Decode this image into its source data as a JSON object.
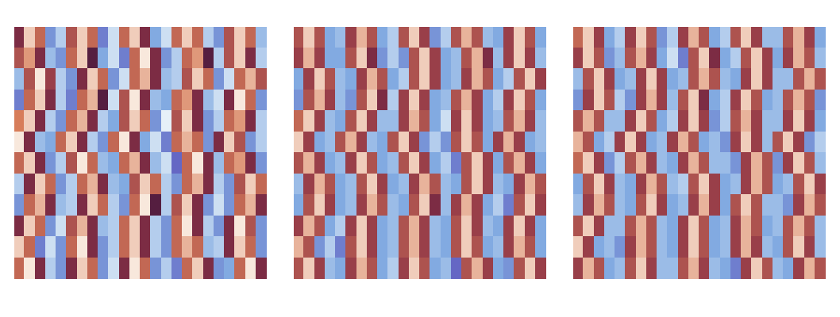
{
  "chart_data": [
    {
      "type": "heatmap",
      "tick_labels": false,
      "clim": [
        -1,
        1
      ],
      "cells": [
        [
          0.2,
          0.9,
          0.5,
          -0.5,
          -0.8,
          0.4,
          0.9,
          0.5,
          -0.4,
          -0.9,
          0.5,
          0.9,
          0.2,
          -0.6,
          -0.9,
          0.5,
          0.9,
          0.5,
          -0.8,
          -0.5,
          0.4,
          0.9,
          0.5,
          -0.7
        ],
        [
          0.4,
          0.7,
          0.2,
          -0.7,
          -0.5,
          0.5,
          0.9,
          0.1,
          -0.6,
          -0.9,
          -0.4,
          0.5,
          1.0,
          0.2,
          -0.5,
          -0.8,
          0.5,
          0.7,
          0.1,
          -0.8,
          0.4,
          0.9,
          0.2,
          -0.8
        ],
        [
          -0.7,
          0.4,
          1.0,
          0.3,
          -0.8,
          -0.5,
          0.2,
          0.9,
          0.5,
          -0.5,
          -0.9,
          0.5,
          0.8,
          0.2,
          -0.7,
          -0.8,
          0.4,
          0.9,
          0.5,
          -0.5,
          -0.9,
          0.5,
          0.8,
          0.4
        ],
        [
          -0.4,
          0.5,
          0.9,
          0.2,
          -0.8,
          -0.4,
          0.5,
          0.8,
          0.1,
          -0.9,
          0.4,
          1.0,
          0.2,
          -0.7,
          -0.6,
          0.5,
          0.7,
          0.2,
          -0.7,
          -0.9,
          0.2,
          1.0,
          0.5,
          -0.5
        ],
        [
          0.6,
          0.9,
          0.2,
          -0.8,
          -0.5,
          0.5,
          0.8,
          0.2,
          -0.8,
          -0.6,
          0.4,
          0.9,
          0.5,
          -0.5,
          -1.0,
          0.4,
          0.9,
          0.2,
          -0.5,
          -0.8,
          0.5,
          0.7,
          0.2,
          -0.8
        ],
        [
          1.0,
          0.2,
          -0.7,
          -0.6,
          0.5,
          0.9,
          0.2,
          -0.8,
          -0.5,
          0.5,
          1.0,
          0.2,
          -0.6,
          -0.9,
          -0.4,
          0.5,
          0.8,
          0.5,
          -0.5,
          0.2,
          0.9,
          0.4,
          -0.5,
          -0.8
        ],
        [
          0.5,
          0.9,
          0.2,
          -0.5,
          -0.8,
          0.4,
          1.0,
          0.5,
          -0.7,
          -0.6,
          0.5,
          0.8,
          0.2,
          -0.7,
          -0.9,
          -0.3,
          0.5,
          1.0,
          0.2,
          -0.7,
          0.5,
          0.7,
          0.2,
          -0.5
        ],
        [
          -0.8,
          0.2,
          0.9,
          0.5,
          -0.5,
          -0.8,
          0.5,
          0.8,
          0.2,
          -0.7,
          -0.6,
          0.4,
          0.9,
          0.5,
          -0.8,
          -0.5,
          0.5,
          0.8,
          0.2,
          -0.8,
          -0.5,
          0.4,
          0.9,
          0.5
        ],
        [
          -0.5,
          0.5,
          0.8,
          0.2,
          -0.7,
          -0.8,
          0.2,
          0.9,
          0.5,
          -0.8,
          -0.5,
          0.5,
          1.0,
          0.1,
          -0.8,
          0.4,
          0.9,
          0.2,
          -0.5,
          -0.9,
          -0.5,
          0.5,
          0.8,
          0.2
        ],
        [
          0.2,
          0.9,
          0.5,
          -0.5,
          -0.9,
          0.4,
          0.8,
          0.2,
          -0.7,
          -0.8,
          0.5,
          0.9,
          0.2,
          -0.8,
          -0.5,
          0.5,
          1.0,
          0.2,
          -0.8,
          -0.5,
          0.2,
          1.0,
          0.4,
          -0.5
        ],
        [
          0.9,
          0.5,
          -0.4,
          -0.9,
          -0.5,
          0.5,
          1.0,
          0.2,
          -0.5,
          -0.8,
          0.5,
          0.9,
          0.2,
          -0.8,
          -0.5,
          0.5,
          0.8,
          0.5,
          -0.7,
          -0.8,
          0.2,
          0.9,
          0.5,
          -0.5
        ],
        [
          0.5,
          1.0,
          0.2,
          -0.8,
          -0.5,
          0.2,
          0.9,
          0.5,
          -0.5,
          -0.9,
          0.2,
          1.0,
          0.5,
          -0.5,
          -0.8,
          -0.4,
          0.5,
          0.9,
          0.2,
          -0.5,
          -0.6,
          0.5,
          1.0,
          0.2
        ]
      ]
    },
    {
      "type": "heatmap",
      "tick_labels": false,
      "clim": [
        -1,
        1
      ],
      "cells": [
        [
          0.4,
          0.9,
          0.4,
          -0.6,
          -0.7,
          0.3,
          0.8,
          0.4,
          -0.6,
          -0.8,
          0.4,
          0.9,
          0.3,
          -0.5,
          -0.8,
          0.4,
          0.8,
          0.4,
          -0.7,
          -0.6,
          0.3,
          0.9,
          0.4,
          -0.6
        ],
        [
          0.3,
          0.8,
          0.3,
          -0.6,
          -0.6,
          0.4,
          0.9,
          0.2,
          -0.5,
          -0.8,
          -0.5,
          0.4,
          0.9,
          0.3,
          -0.6,
          -0.7,
          0.4,
          0.8,
          0.2,
          -0.7,
          0.3,
          0.9,
          0.3,
          -0.7
        ],
        [
          -0.6,
          0.3,
          0.9,
          0.4,
          -0.7,
          -0.6,
          0.3,
          0.8,
          0.4,
          -0.6,
          -0.8,
          0.4,
          0.9,
          0.3,
          -0.6,
          -0.7,
          0.3,
          0.8,
          0.4,
          -0.6,
          -0.8,
          0.4,
          0.9,
          0.3
        ],
        [
          -0.5,
          0.4,
          0.8,
          0.3,
          -0.7,
          -0.5,
          0.4,
          0.9,
          0.2,
          -0.8,
          0.3,
          0.9,
          0.3,
          -0.6,
          -0.7,
          0.4,
          0.8,
          0.3,
          -0.6,
          -0.8,
          0.3,
          0.9,
          0.4,
          -0.6
        ],
        [
          0.5,
          0.9,
          0.3,
          -0.7,
          -0.6,
          0.4,
          0.9,
          0.3,
          -0.7,
          -0.7,
          0.3,
          0.8,
          0.4,
          -0.6,
          -0.9,
          0.3,
          0.9,
          0.3,
          -0.6,
          -0.7,
          0.4,
          0.8,
          0.3,
          -0.7
        ],
        [
          0.9,
          0.3,
          -0.6,
          -0.7,
          0.4,
          0.8,
          0.3,
          -0.7,
          -0.6,
          0.4,
          0.9,
          0.3,
          -0.5,
          -0.8,
          -0.5,
          0.4,
          0.9,
          0.4,
          -0.6,
          0.3,
          0.8,
          0.3,
          -0.6,
          -0.7
        ],
        [
          0.4,
          0.8,
          0.3,
          -0.6,
          -0.7,
          0.3,
          0.9,
          0.4,
          -0.6,
          -0.7,
          0.4,
          0.9,
          0.3,
          -0.6,
          -0.8,
          -0.4,
          0.4,
          0.9,
          0.3,
          -0.6,
          0.4,
          0.8,
          0.3,
          -0.6
        ],
        [
          -0.7,
          0.3,
          0.8,
          0.4,
          -0.6,
          -0.7,
          0.4,
          0.9,
          0.3,
          -0.6,
          -0.7,
          0.3,
          0.8,
          0.4,
          -0.7,
          -0.6,
          0.4,
          0.9,
          0.3,
          -0.7,
          -0.6,
          0.3,
          0.8,
          0.4
        ],
        [
          -0.6,
          0.4,
          0.9,
          0.3,
          -0.6,
          -0.7,
          0.3,
          0.8,
          0.4,
          -0.7,
          -0.6,
          0.4,
          0.9,
          0.2,
          -0.7,
          0.3,
          0.8,
          0.3,
          -0.6,
          -0.8,
          -0.4,
          0.4,
          0.9,
          0.3
        ],
        [
          0.3,
          0.8,
          0.4,
          -0.6,
          -0.8,
          0.3,
          0.9,
          0.3,
          -0.6,
          -0.7,
          0.4,
          0.8,
          0.3,
          -0.7,
          -0.6,
          0.4,
          0.9,
          0.3,
          -0.7,
          -0.6,
          0.3,
          0.9,
          0.3,
          -0.6
        ],
        [
          0.8,
          0.4,
          -0.5,
          -0.8,
          -0.4,
          0.4,
          0.9,
          0.3,
          -0.6,
          -0.7,
          0.4,
          0.8,
          0.3,
          -0.7,
          -0.6,
          0.4,
          0.9,
          0.4,
          -0.6,
          -0.7,
          0.3,
          0.8,
          0.4,
          -0.6
        ],
        [
          0.4,
          0.9,
          0.3,
          -0.7,
          -0.6,
          0.3,
          0.8,
          0.4,
          -0.6,
          -0.8,
          0.3,
          0.9,
          0.4,
          -0.6,
          -0.7,
          -0.3,
          0.4,
          0.8,
          0.3,
          -0.6,
          -0.5,
          0.4,
          0.9,
          0.3
        ]
      ]
    },
    {
      "type": "heatmap",
      "tick_labels": false,
      "clim": [
        -1,
        1
      ],
      "cells": [
        [
          0.5,
          0.9,
          0.3,
          -0.6,
          -0.8,
          0.3,
          0.9,
          0.4,
          -0.5,
          -0.8,
          0.3,
          0.8,
          0.4,
          -0.6,
          -0.8,
          0.4,
          0.9,
          0.3,
          -0.7,
          -0.7,
          0.4,
          0.8,
          0.3,
          -0.6
        ],
        [
          0.3,
          0.9,
          0.4,
          -0.5,
          -0.7,
          0.4,
          0.8,
          0.3,
          -0.6,
          -0.9,
          -0.4,
          0.4,
          0.9,
          0.2,
          -0.6,
          -0.8,
          0.4,
          0.9,
          0.3,
          -0.6,
          0.3,
          0.8,
          0.4,
          -0.7
        ],
        [
          -0.7,
          0.4,
          0.9,
          0.3,
          -0.6,
          -0.7,
          0.3,
          0.9,
          0.3,
          -0.6,
          -0.7,
          0.4,
          0.8,
          0.4,
          -0.7,
          -0.6,
          0.3,
          0.9,
          0.3,
          -0.7,
          -0.7,
          0.4,
          0.8,
          0.4
        ],
        [
          -0.5,
          0.3,
          0.9,
          0.4,
          -0.8,
          -0.5,
          0.3,
          0.8,
          0.3,
          -0.7,
          0.4,
          0.9,
          0.2,
          -0.6,
          -0.8,
          0.3,
          0.9,
          0.4,
          -0.6,
          -0.7,
          0.4,
          0.8,
          0.4,
          -0.5
        ],
        [
          0.4,
          0.8,
          0.4,
          -0.7,
          -0.7,
          0.3,
          0.9,
          0.4,
          -0.6,
          -0.8,
          0.3,
          0.9,
          0.3,
          -0.5,
          -0.8,
          0.4,
          0.8,
          0.3,
          -0.7,
          -0.7,
          0.3,
          0.9,
          0.3,
          -0.6
        ],
        [
          0.8,
          0.4,
          -0.6,
          -0.8,
          0.3,
          0.9,
          0.3,
          -0.6,
          -0.7,
          0.3,
          0.8,
          0.4,
          -0.6,
          -0.7,
          -0.5,
          0.3,
          0.9,
          0.3,
          -0.7,
          0.4,
          0.9,
          0.3,
          -0.5,
          -0.8
        ],
        [
          0.5,
          0.9,
          0.3,
          -0.5,
          -0.8,
          0.4,
          0.8,
          0.3,
          -0.7,
          -0.6,
          0.3,
          0.8,
          0.4,
          -0.7,
          -0.7,
          -0.5,
          0.3,
          0.8,
          0.4,
          -0.5,
          0.3,
          0.9,
          0.4,
          -0.7
        ],
        [
          -0.6,
          0.4,
          0.9,
          0.3,
          -0.7,
          -0.6,
          0.3,
          0.8,
          0.4,
          -0.7,
          -0.8,
          0.4,
          0.9,
          0.3,
          -0.6,
          -0.7,
          0.3,
          0.8,
          0.4,
          -0.6,
          -0.7,
          0.4,
          0.9,
          0.3
        ],
        [
          -0.7,
          0.3,
          0.8,
          0.4,
          -0.7,
          -0.6,
          0.4,
          0.9,
          0.3,
          -0.6,
          -0.7,
          0.3,
          0.8,
          0.3,
          -0.6,
          0.4,
          0.9,
          0.4,
          -0.7,
          -0.7,
          -0.5,
          0.3,
          0.8,
          0.4
        ],
        [
          0.4,
          0.9,
          0.3,
          -0.7,
          -0.7,
          0.4,
          0.8,
          0.4,
          -0.7,
          -0.6,
          0.3,
          0.9,
          0.4,
          -0.6,
          -0.7,
          0.3,
          0.8,
          0.4,
          -0.6,
          -0.7,
          0.4,
          0.8,
          0.4,
          -0.7
        ],
        [
          0.9,
          0.3,
          -0.6,
          -0.7,
          -0.5,
          0.3,
          0.8,
          0.4,
          -0.7,
          -0.6,
          0.3,
          0.9,
          0.4,
          -0.6,
          -0.7,
          0.3,
          0.8,
          0.3,
          -0.7,
          -0.6,
          0.4,
          0.9,
          0.3,
          -0.7
        ],
        [
          0.3,
          0.8,
          0.4,
          -0.6,
          -0.7,
          0.4,
          0.9,
          0.3,
          -0.7,
          -0.7,
          0.4,
          0.8,
          0.3,
          -0.7,
          -0.6,
          -0.4,
          0.3,
          0.9,
          0.4,
          -0.7,
          -0.6,
          0.3,
          0.8,
          0.4
        ]
      ]
    }
  ]
}
